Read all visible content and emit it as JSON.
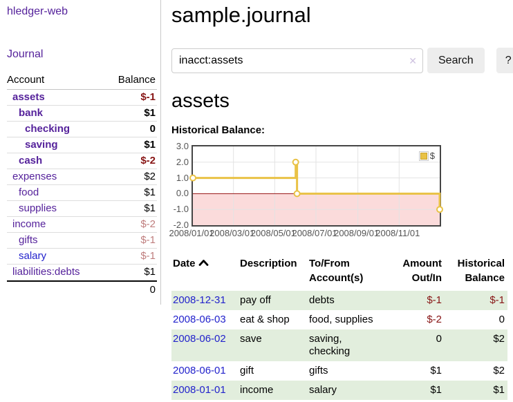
{
  "app": {
    "title": "hledger-web"
  },
  "sidebar": {
    "journal_link": "Journal",
    "accounts": {
      "col_account": "Account",
      "col_balance": "Balance",
      "rows": [
        {
          "name": "assets",
          "balance": "$-1"
        },
        {
          "name": "bank",
          "balance": "$1"
        },
        {
          "name": "checking",
          "balance": "0"
        },
        {
          "name": "saving",
          "balance": "$1"
        },
        {
          "name": "cash",
          "balance": "$-2"
        },
        {
          "name": "expenses",
          "balance": "$2"
        },
        {
          "name": "food",
          "balance": "$1"
        },
        {
          "name": "supplies",
          "balance": "$1"
        },
        {
          "name": "income",
          "balance": "$-2"
        },
        {
          "name": "gifts",
          "balance": "$-1"
        },
        {
          "name": "salary",
          "balance": "$-1"
        },
        {
          "name": "liabilities:debts",
          "balance": "$1"
        }
      ],
      "total": "0"
    }
  },
  "main": {
    "title": "sample.journal",
    "search": {
      "value": "inacct:assets",
      "clear_icon": "✕",
      "search_button": "Search",
      "help_button": "?"
    },
    "account_heading": "assets",
    "chart_heading": "Historical Balance:"
  },
  "chart_data": {
    "type": "line",
    "step": true,
    "title": "Historical Balance:",
    "series": [
      {
        "name": "$",
        "color": "#e9c246",
        "points": [
          [
            "2008-01-01",
            1
          ],
          [
            "2008-06-01",
            2
          ],
          [
            "2008-06-03",
            0
          ],
          [
            "2008-12-31",
            -1
          ]
        ]
      }
    ],
    "xlim": [
      "2008-01-01",
      "2008-12-31"
    ],
    "ylim": [
      -2,
      3
    ],
    "x_ticks": [
      "2008/01/01",
      "2008/03/01",
      "2008/05/01",
      "2008/07/01",
      "2008/09/01",
      "2008/11/01"
    ],
    "y_ticks": [
      3,
      2,
      1,
      0,
      -1,
      -2
    ],
    "grid": true,
    "grid_color": "#e3e3e3",
    "tick_label_color": "#545454",
    "negative_region_color": "#fbdbdb",
    "zero_line_color": "#941111",
    "legend_position": "top-right"
  },
  "register": {
    "headers": {
      "date": "Date",
      "description": "Description",
      "to_from": "To/From Account(s)",
      "amount": "Amount Out/In",
      "balance": "Historical Balance"
    },
    "rows": [
      {
        "date": "2008-12-31",
        "description": "pay off",
        "to_from": "debts",
        "amount": "$-1",
        "balance": "$-1"
      },
      {
        "date": "2008-06-03",
        "description": "eat & shop",
        "to_from": "food, supplies",
        "amount": "$-2",
        "balance": "0"
      },
      {
        "date": "2008-06-02",
        "description": "save",
        "to_from": "saving,\nchecking",
        "amount": "0",
        "balance": "$2"
      },
      {
        "date": "2008-06-01",
        "description": "gift",
        "to_from": "gifts",
        "amount": "$1",
        "balance": "$2"
      },
      {
        "date": "2008-01-01",
        "description": "income",
        "to_from": "salary",
        "amount": "$1",
        "balance": "$1"
      }
    ]
  }
}
